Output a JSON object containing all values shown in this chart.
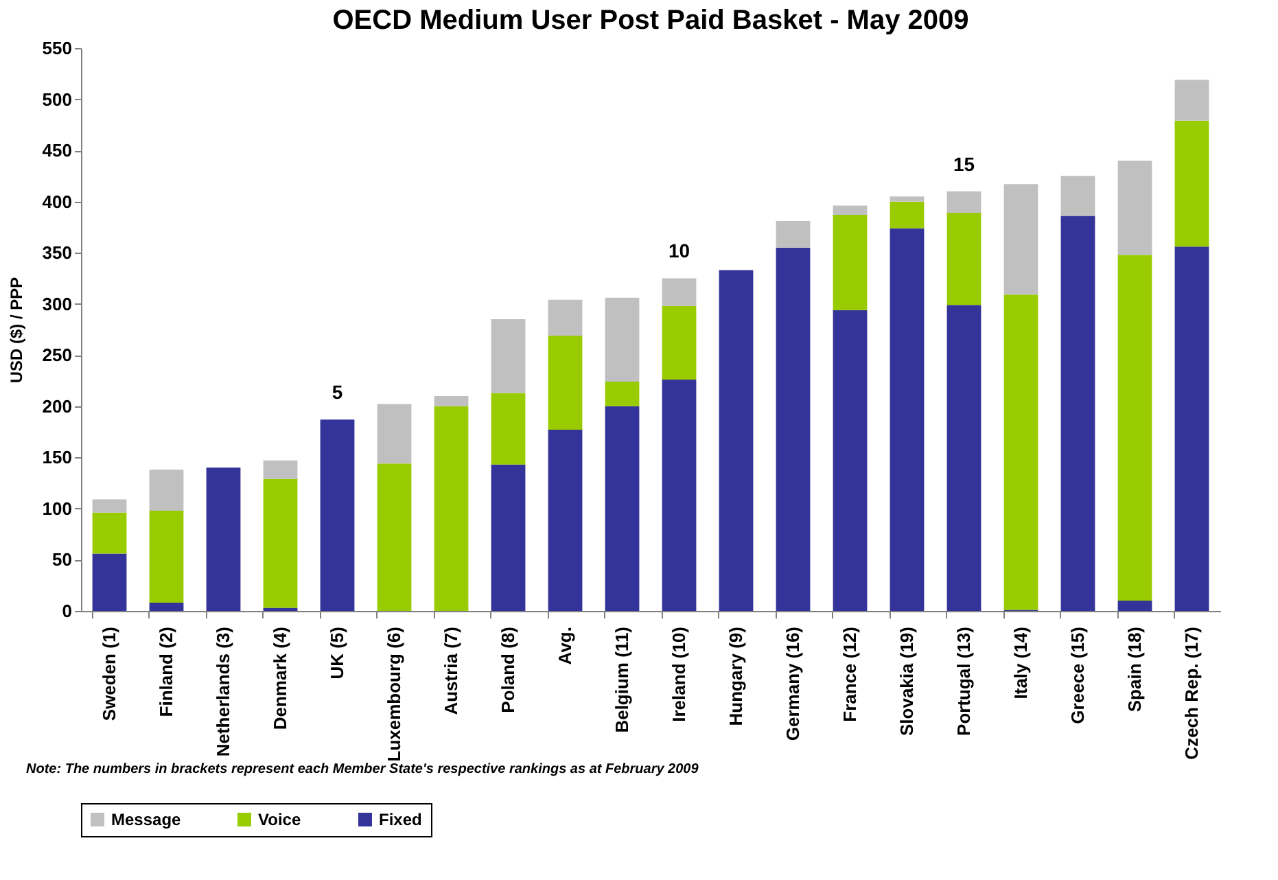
{
  "chart_data": {
    "type": "bar",
    "stacked": true,
    "title": "OECD Medium User Post Paid Basket - May 2009",
    "ylabel": "USD ($) / PPP",
    "categories": [
      "Sweden (1)",
      "Finland (2)",
      "Netherlands (3)",
      "Denmark (4)",
      "UK (5)",
      "Luxembourg (6)",
      "Austria (7)",
      "Poland (8)",
      "Avg.",
      "Belgium (11)",
      "Ireland (10)",
      "Hungary (9)",
      "Germany (16)",
      "France (12)",
      "Slovakia (19)",
      "Portugal (13)",
      "Italy (14)",
      "Greece (15)",
      "Spain (18)",
      "Czech Rep. (17)"
    ],
    "series": [
      {
        "name": "Fixed",
        "color": "#333399",
        "values": [
          56,
          8,
          140,
          3,
          187,
          0,
          0,
          143,
          177,
          200,
          226,
          333,
          355,
          294,
          374,
          299,
          1,
          386,
          10,
          356
        ]
      },
      {
        "name": "Voice",
        "color": "#99cc00",
        "values": [
          40,
          90,
          0,
          126,
          0,
          144,
          200,
          70,
          92,
          24,
          72,
          0,
          0,
          93,
          26,
          90,
          308,
          0,
          338,
          123
        ]
      },
      {
        "name": "Message",
        "color": "#c0c0c0",
        "values": [
          13,
          40,
          0,
          18,
          0,
          58,
          10,
          72,
          35,
          82,
          27,
          0,
          26,
          9,
          5,
          21,
          108,
          39,
          92,
          40
        ]
      }
    ],
    "ylim": [
      0,
      550
    ],
    "yticks": [
      0,
      50,
      100,
      150,
      200,
      250,
      300,
      350,
      400,
      450,
      500,
      550
    ],
    "grid": false,
    "legend": "bottom",
    "annotations": [
      {
        "text": "5",
        "x": "UK (5)",
        "y": 187
      },
      {
        "text": "10",
        "x": "Ireland (10)",
        "y": 325
      },
      {
        "text": "15",
        "x": "Portugal (13)",
        "y": 410
      },
      "Note: The numbers in brackets represent each Member State's respective rankings as at February 2009"
    ]
  }
}
